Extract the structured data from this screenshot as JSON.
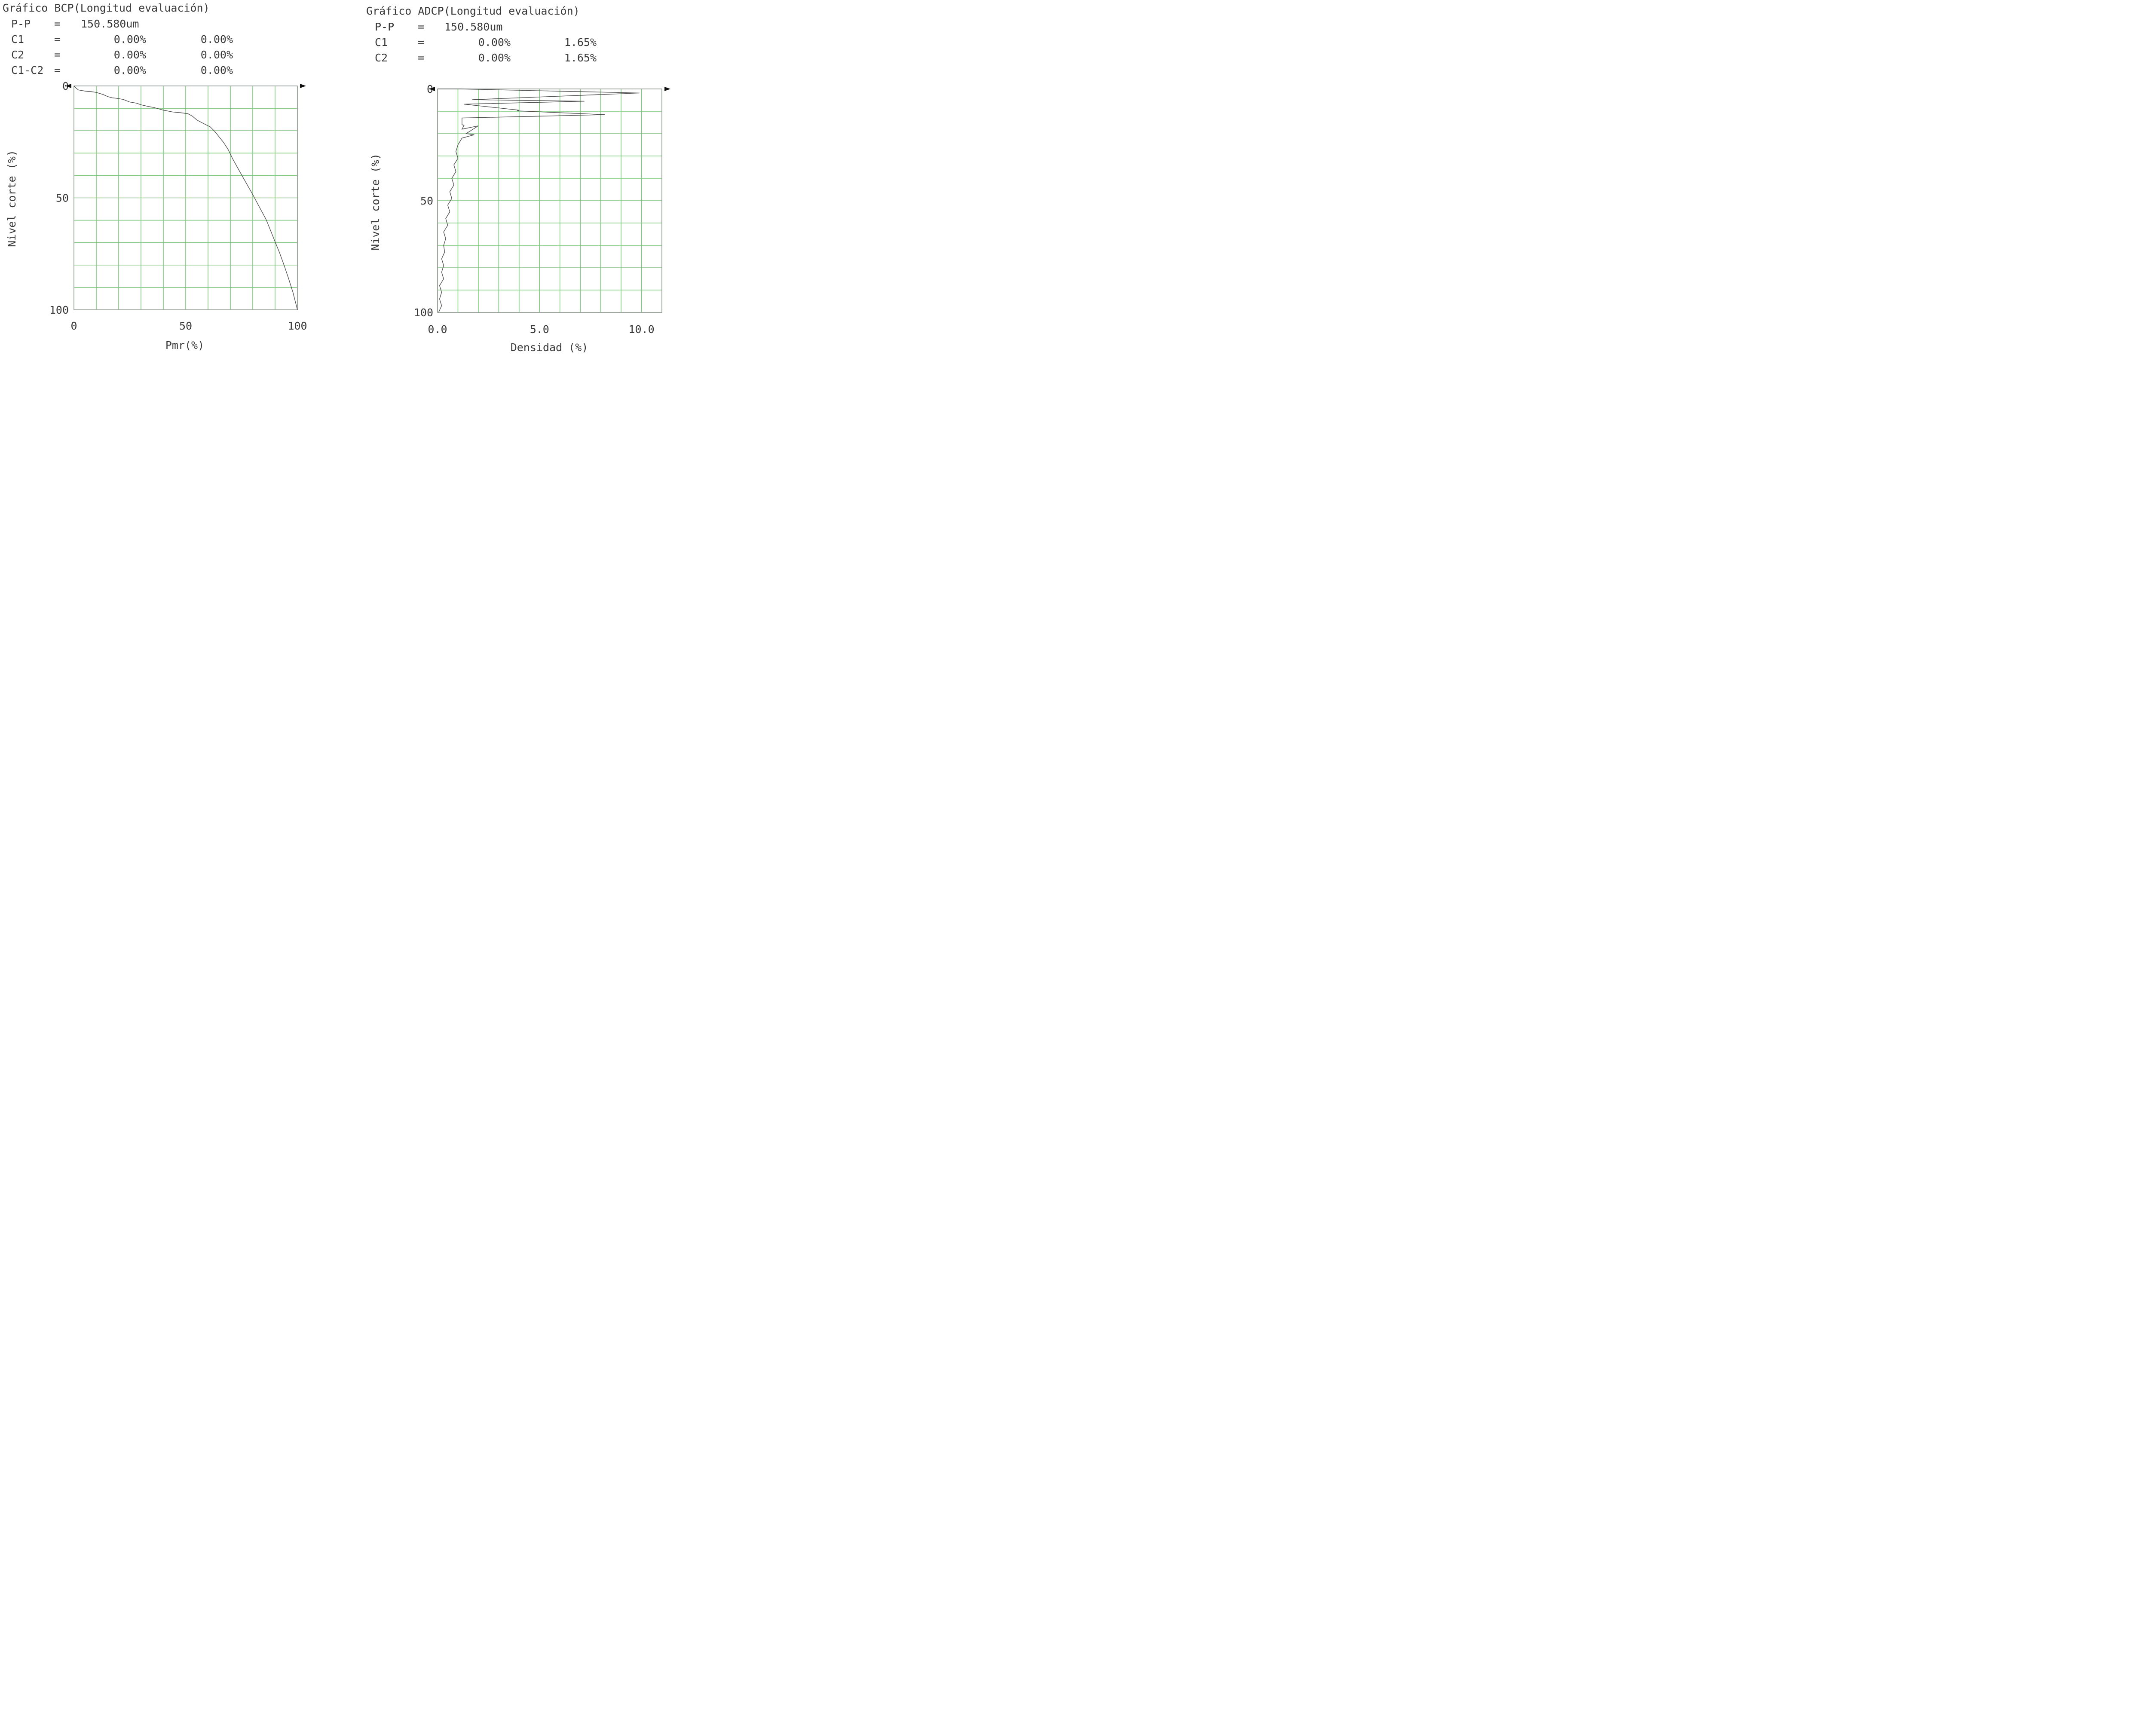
{
  "chart_data": [
    {
      "type": "line",
      "title": "Gráfico BCP(Longitud evaluación)",
      "stats": [
        {
          "label": "P-P",
          "sep": "=",
          "values": [
            "150.580um"
          ]
        },
        {
          "label": "C1",
          "sep": "=",
          "values": [
            "0.00%",
            "0.00%"
          ]
        },
        {
          "label": "C2",
          "sep": "=",
          "values": [
            "0.00%",
            "0.00%"
          ]
        },
        {
          "label": "C1-C2",
          "sep": "=",
          "values": [
            "0.00%",
            "0.00%"
          ]
        }
      ],
      "xlabel": "Pmr(%)",
      "ylabel": "Nivel corte (%)",
      "xlim": [
        0,
        100
      ],
      "ylim": [
        0,
        100
      ],
      "y_inverted": true,
      "grid": true,
      "xticks": [
        {
          "v": 0,
          "label": "0"
        },
        {
          "v": 50,
          "label": "50"
        },
        {
          "v": 100,
          "label": "100"
        }
      ],
      "yticks": [
        {
          "v": 0,
          "label": "0"
        },
        {
          "v": 50,
          "label": "50"
        },
        {
          "v": 100,
          "label": "100"
        }
      ],
      "grid_x": [
        0,
        10,
        20,
        30,
        40,
        50,
        60,
        70,
        80,
        90,
        100
      ],
      "grid_y": [
        0,
        10,
        20,
        30,
        40,
        50,
        60,
        70,
        80,
        90,
        100
      ],
      "series": [
        {
          "x": [
            0,
            1,
            2,
            5,
            8,
            10,
            13,
            15,
            17,
            19,
            22,
            25,
            28,
            30,
            33,
            36,
            40,
            44,
            48,
            51,
            53,
            55,
            58,
            61,
            63,
            65,
            67,
            69,
            71,
            74,
            77,
            80,
            83,
            86,
            88,
            90,
            92,
            94,
            96,
            98,
            100
          ],
          "y": [
            0,
            1,
            1.8,
            2.3,
            2.6,
            2.9,
            3.8,
            4.7,
            5.3,
            5.5,
            6.0,
            7.2,
            7.7,
            8.4,
            9.1,
            9.7,
            10.8,
            11.6,
            12.0,
            12.4,
            13.5,
            15.2,
            16.8,
            18.3,
            20.3,
            22.8,
            25.3,
            28.4,
            32.5,
            37.9,
            43.2,
            48.5,
            54.1,
            59.7,
            64.6,
            69.6,
            74.5,
            80.0,
            85.9,
            92.2,
            100
          ]
        }
      ]
    },
    {
      "type": "line",
      "title": "Gráfico ADCP(Longitud evaluación)",
      "stats": [
        {
          "label": "P-P",
          "sep": "=",
          "values": [
            "150.580um"
          ]
        },
        {
          "label": "C1",
          "sep": "=",
          "values": [
            "0.00%",
            "1.65%"
          ]
        },
        {
          "label": "C2",
          "sep": "=",
          "values": [
            "0.00%",
            "1.65%"
          ]
        }
      ],
      "xlabel": "Densidad (%)",
      "ylabel": "Nivel corte (%)",
      "xlim": [
        0,
        11
      ],
      "ylim": [
        0,
        100
      ],
      "y_inverted": true,
      "grid": true,
      "xticks": [
        {
          "v": 0,
          "label": "0.0"
        },
        {
          "v": 5,
          "label": "5.0"
        },
        {
          "v": 10,
          "label": "10.0"
        }
      ],
      "yticks": [
        {
          "v": 0,
          "label": "0"
        },
        {
          "v": 50,
          "label": "50"
        },
        {
          "v": 100,
          "label": "100"
        }
      ],
      "grid_x": [
        0,
        1.0,
        2.0,
        3.0,
        4.0,
        5.0,
        6.0,
        7.0,
        8.0,
        9.0,
        10.0,
        11.0
      ],
      "grid_y": [
        0,
        10,
        20,
        30,
        40,
        50,
        60,
        70,
        80,
        90,
        100
      ],
      "series": [
        {
          "x": [
            0,
            1.1,
            9.9,
            1.7,
            7.2,
            1.3,
            4.0,
            3.9,
            8.2,
            1.2,
            1.2,
            1.3,
            1.2,
            2.0,
            1.4,
            1.8,
            1.2,
            1.0,
            0.9,
            1.0,
            0.8,
            0.9,
            0.7,
            0.8,
            0.6,
            0.7,
            0.5,
            0.6,
            0.4,
            0.5,
            0.3,
            0.4,
            0.3,
            0.35,
            0.2,
            0.3,
            0.2,
            0.3,
            0.1,
            0.2,
            0.1,
            0.2,
            0.05
          ],
          "y": [
            0,
            0,
            1.8,
            4.8,
            5.5,
            6.8,
            9.5,
            9.8,
            11.5,
            13.0,
            16.0,
            16.3,
            18.0,
            16.5,
            20.0,
            20.5,
            22.0,
            25.0,
            28.0,
            31.0,
            34.0,
            37.0,
            40.0,
            43.0,
            46.0,
            49.0,
            52.0,
            55.0,
            58.0,
            61.0,
            64.0,
            67.0,
            70.0,
            73.0,
            76.0,
            79.0,
            82.0,
            85.0,
            88.0,
            91.0,
            94.0,
            97.0,
            100.0
          ]
        }
      ]
    }
  ]
}
